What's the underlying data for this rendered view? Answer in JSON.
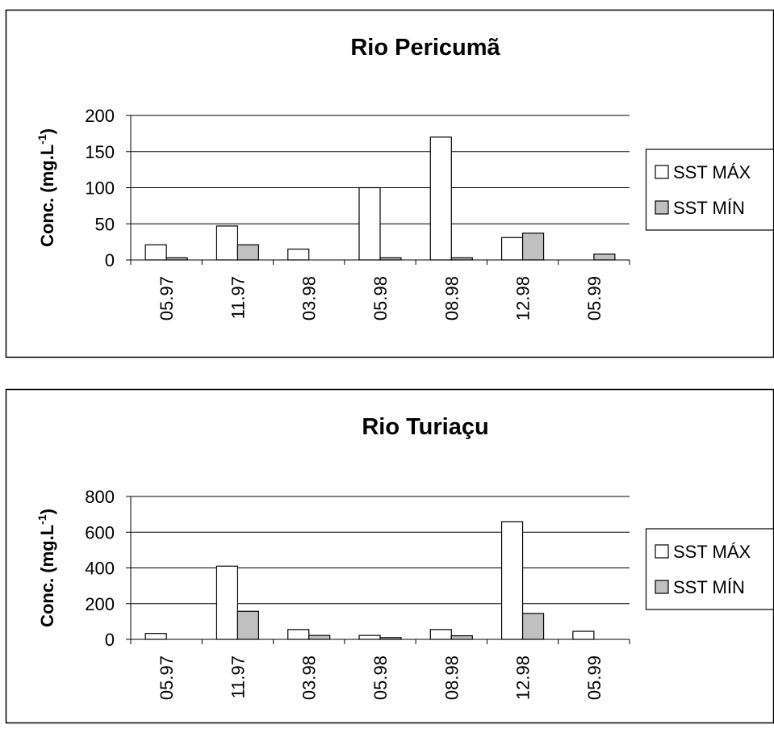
{
  "chart_data": [
    {
      "type": "bar",
      "title": "Rio Pericumã",
      "ylabel_main": "Conc. (mg.L",
      "ylabel_sup": "-1",
      "ylabel_tail": ")",
      "ylim": [
        0,
        200
      ],
      "yticks": [
        "0",
        "50",
        "100",
        "150",
        "200"
      ],
      "grid": true,
      "legend_position": "right",
      "categories": [
        "05.97",
        "11.97",
        "03.98",
        "05.98",
        "08.98",
        "12.98",
        "05.99"
      ],
      "series": [
        {
          "name": "SST MÁX",
          "color": "#ffffff",
          "values": [
            21,
            47,
            15,
            100,
            170,
            31,
            0
          ]
        },
        {
          "name": "SST MÍN",
          "color": "#c0c0c0",
          "values": [
            3,
            21,
            0,
            3,
            3,
            37,
            8
          ]
        }
      ]
    },
    {
      "type": "bar",
      "title": "Rio Turiaçu",
      "ylabel_main": "Conc. (mg.L",
      "ylabel_sup": "-1",
      "ylabel_tail": ")",
      "ylim": [
        0,
        800
      ],
      "yticks": [
        "0",
        "200",
        "400",
        "600",
        "800"
      ],
      "grid": true,
      "legend_position": "right",
      "categories": [
        "05.97",
        "11.97",
        "03.98",
        "05.98",
        "08.98",
        "12.98",
        "05.99"
      ],
      "series": [
        {
          "name": "SST MÁX",
          "color": "#ffffff",
          "values": [
            33,
            410,
            55,
            22,
            55,
            658,
            45
          ]
        },
        {
          "name": "SST MÍN",
          "color": "#c0c0c0",
          "values": [
            0,
            157,
            22,
            10,
            20,
            145,
            0
          ]
        }
      ]
    }
  ]
}
